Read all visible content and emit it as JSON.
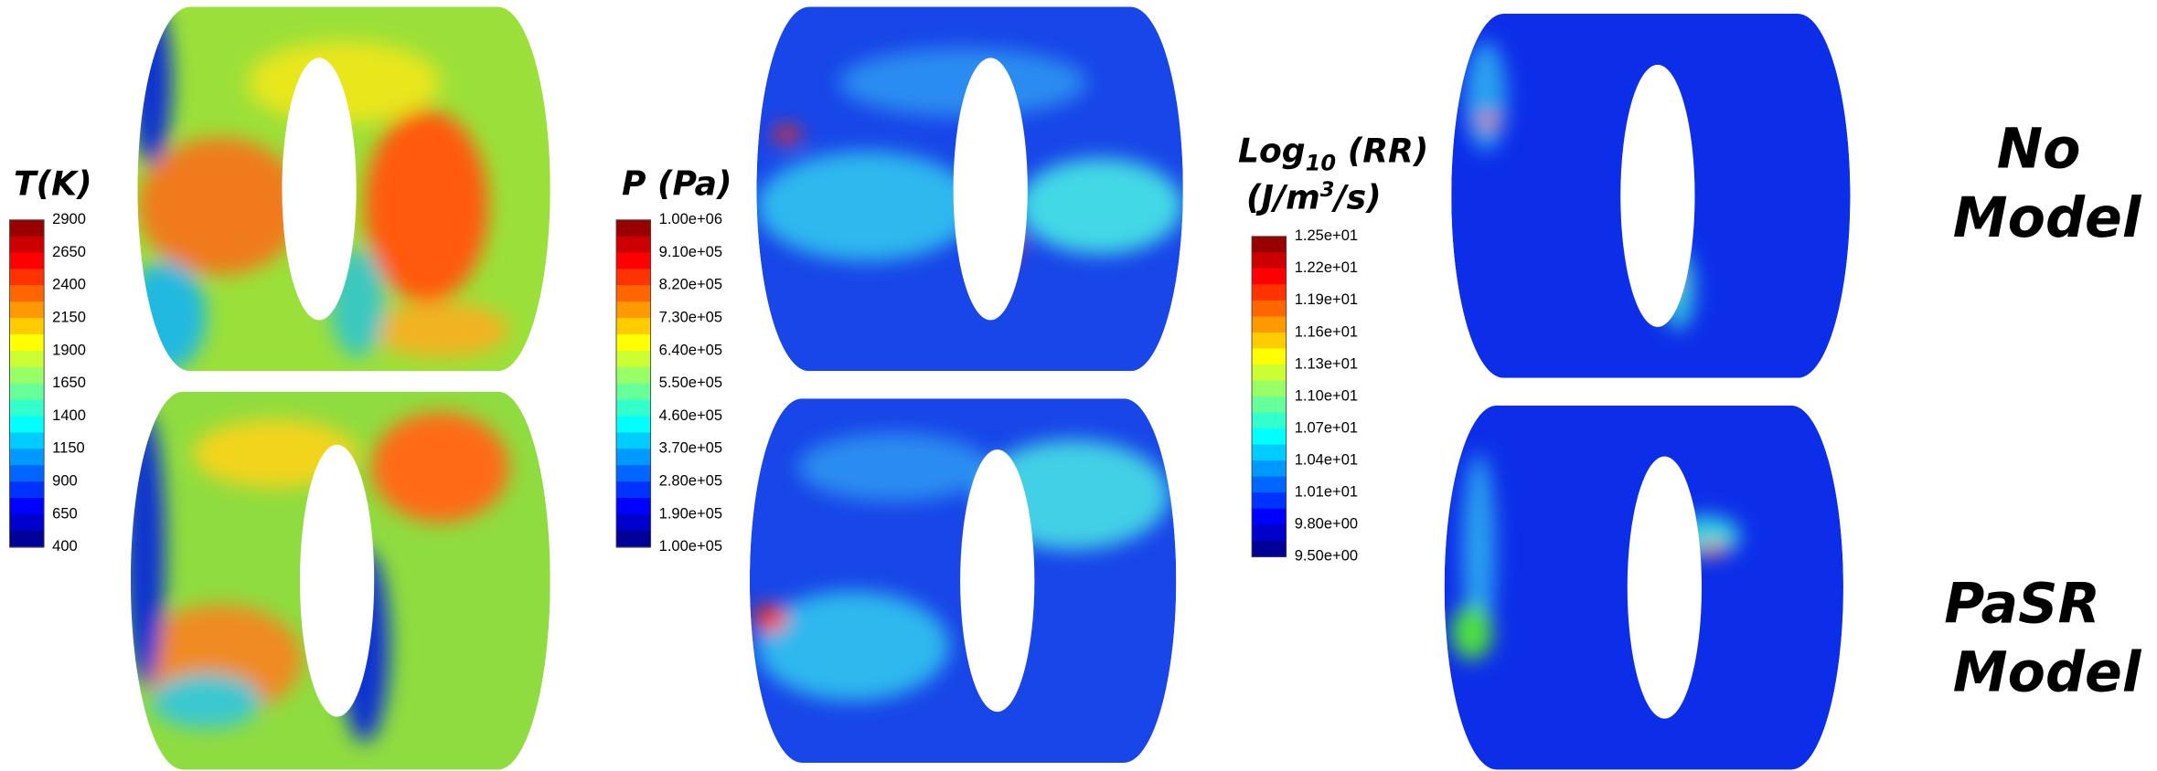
{
  "colorbars": [
    {
      "title": "T(K)",
      "ticks": [
        "2900",
        "2650",
        "2400",
        "2150",
        "1900",
        "1650",
        "1400",
        "1150",
        "900",
        "650",
        "400"
      ]
    },
    {
      "title": "P (Pa)",
      "ticks": [
        "1.00e+06",
        "9.10e+05",
        "8.20e+05",
        "7.30e+05",
        "6.40e+05",
        "5.50e+05",
        "4.60e+05",
        "3.70e+05",
        "2.80e+05",
        "1.90e+05",
        "1.00e+05"
      ]
    },
    {
      "title_parts": [
        "Log",
        "10",
        " (RR)"
      ],
      "units_parts": [
        "(J/m",
        "3",
        "/s)"
      ],
      "ticks": [
        "1.25e+01",
        "1.22e+01",
        "1.19e+01",
        "1.16e+01",
        "1.13e+01",
        "1.10e+01",
        "1.07e+01",
        "1.04e+01",
        "1.01e+01",
        "9.80e+00",
        "9.50e+00"
      ]
    }
  ],
  "row_labels": [
    [
      "No",
      "Model"
    ],
    [
      "PaSR",
      "Model"
    ]
  ]
}
